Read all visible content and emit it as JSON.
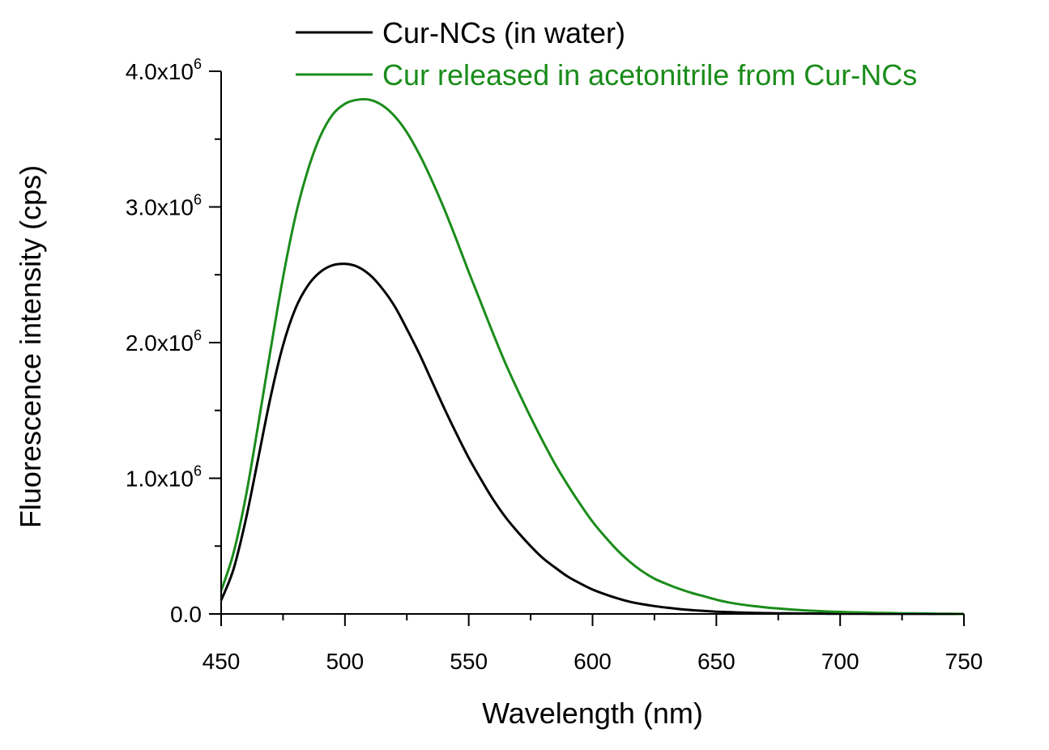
{
  "chart_data": {
    "type": "line",
    "title": "",
    "xlabel": "Wavelength (nm)",
    "ylabel": "Fluorescence intensity (cps)",
    "xlim": [
      450,
      750
    ],
    "ylim": [
      0,
      4000000
    ],
    "x_ticks": [
      450,
      500,
      550,
      600,
      650,
      700,
      750
    ],
    "x_minor_step": 25,
    "y_ticks": [
      {
        "value": 0,
        "mantissa": "0.0",
        "exponent": ""
      },
      {
        "value": 1000000,
        "mantissa": "1.0x10",
        "exponent": "6"
      },
      {
        "value": 2000000,
        "mantissa": "2.0x10",
        "exponent": "6"
      },
      {
        "value": 3000000,
        "mantissa": "3.0x10",
        "exponent": "6"
      },
      {
        "value": 4000000,
        "mantissa": "4.0x10",
        "exponent": "6"
      }
    ],
    "y_minor_step": 500000,
    "grid": false,
    "legend_position": "top-right",
    "x": [
      450,
      455,
      460,
      465,
      470,
      475,
      480,
      485,
      490,
      495,
      500,
      505,
      510,
      515,
      520,
      525,
      530,
      535,
      540,
      545,
      550,
      555,
      560,
      565,
      570,
      575,
      580,
      585,
      590,
      595,
      600,
      605,
      610,
      615,
      620,
      625,
      630,
      635,
      640,
      645,
      650,
      655,
      660,
      665,
      670,
      675,
      680,
      685,
      690,
      695,
      700,
      705,
      710,
      715,
      720,
      725,
      730,
      735,
      740,
      745,
      750
    ],
    "series": [
      {
        "name": "Cur-NCs (in water)",
        "color": "#000000",
        "values": [
          100000,
          330000,
          700000,
          1150000,
          1600000,
          1980000,
          2250000,
          2420000,
          2520000,
          2570000,
          2580000,
          2560000,
          2500000,
          2400000,
          2270000,
          2100000,
          1920000,
          1720000,
          1520000,
          1330000,
          1150000,
          990000,
          840000,
          710000,
          600000,
          500000,
          410000,
          340000,
          275000,
          225000,
          180000,
          145000,
          115000,
          90000,
          72000,
          58000,
          46000,
          36000,
          28000,
          22000,
          17000,
          13000,
          10000,
          8000,
          6000,
          5000,
          4000,
          3000,
          2500,
          2000,
          1500,
          1200,
          1000,
          800,
          600,
          500,
          400,
          300,
          200,
          100,
          0
        ]
      },
      {
        "name": "Cur released in acetonitrile from Cur-NCs",
        "color": "#1a8c1a",
        "values": [
          170000,
          450000,
          870000,
          1400000,
          1950000,
          2480000,
          2930000,
          3270000,
          3520000,
          3680000,
          3760000,
          3790000,
          3790000,
          3750000,
          3670000,
          3550000,
          3390000,
          3200000,
          2990000,
          2760000,
          2520000,
          2290000,
          2060000,
          1840000,
          1640000,
          1450000,
          1270000,
          1100000,
          950000,
          810000,
          680000,
          570000,
          470000,
          385000,
          315000,
          260000,
          220000,
          185000,
          155000,
          130000,
          105000,
          85000,
          70000,
          58000,
          48000,
          40000,
          33000,
          27000,
          22000,
          18000,
          15000,
          12000,
          10000,
          8000,
          6500,
          5000,
          4000,
          3000,
          2000,
          1000,
          0
        ]
      }
    ]
  }
}
